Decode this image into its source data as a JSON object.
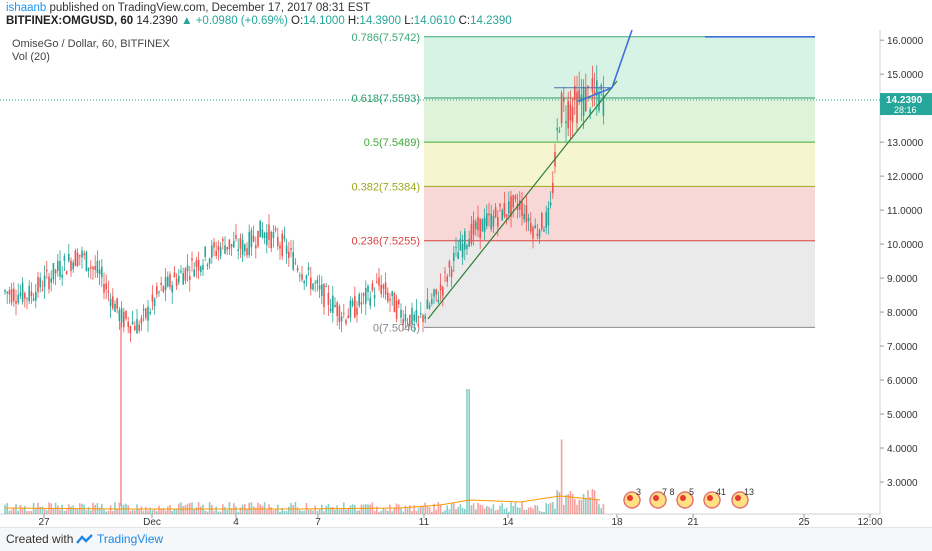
{
  "header": {
    "user": "ishaanb",
    "published": " published on TradingView.com, December 17, 2017 08:31 EST",
    "symbol": "BITFINEX:OMGUSD, 60",
    "last": "14.2390",
    "change": "▲ +0.0980 (+0.69%)",
    "o_label": "O:",
    "o": "14.1000",
    "h_label": "H:",
    "h": "14.3900",
    "l_label": "L:",
    "l": "14.0610",
    "c_label": "C:",
    "c": "14.2390"
  },
  "legend": {
    "title": "OmiseGo / Dollar, 60, BITFINEX",
    "vol": "Vol (20)"
  },
  "footer": {
    "created": "Created with",
    "brand": "TradingView"
  },
  "colors": {
    "up": "#26a69a",
    "down": "#ef5350",
    "line": "#2e7d32",
    "projection": "#3f6fd8",
    "price_line": "#26a69a"
  },
  "chart_data": {
    "type": "candlestick",
    "ylim": [
      2.0,
      16.3
    ],
    "y_ticks": [
      "16.0000",
      "15.0000",
      "14.0000",
      "13.0000",
      "12.0000",
      "11.0000",
      "10.0000",
      "9.0000",
      "8.0000",
      "7.0000",
      "6.0000",
      "5.0000",
      "4.0000",
      "3.0000"
    ],
    "x_ticks": [
      "27",
      "Dec",
      "4",
      "7",
      "11",
      "14",
      "18",
      "21",
      "25",
      "12:00"
    ],
    "last_price": {
      "label": "14.2390",
      "value": 14.239,
      "countdown": "28:16"
    },
    "fib_levels": [
      {
        "label": "0(7.5046)",
        "value": 7.55
      },
      {
        "label": "0.236(7.5255)",
        "value": 10.1
      },
      {
        "label": "0.382(7.5384)",
        "value": 11.7
      },
      {
        "label": "0.5(7.5489)",
        "value": 13.0
      },
      {
        "label": "0.618(7.5593)",
        "value": 14.3
      },
      {
        "label": "0.786(7.5742)",
        "value": 16.1
      }
    ],
    "markers": [
      "3",
      "7",
      "8",
      "5",
      "41",
      "13"
    ]
  }
}
